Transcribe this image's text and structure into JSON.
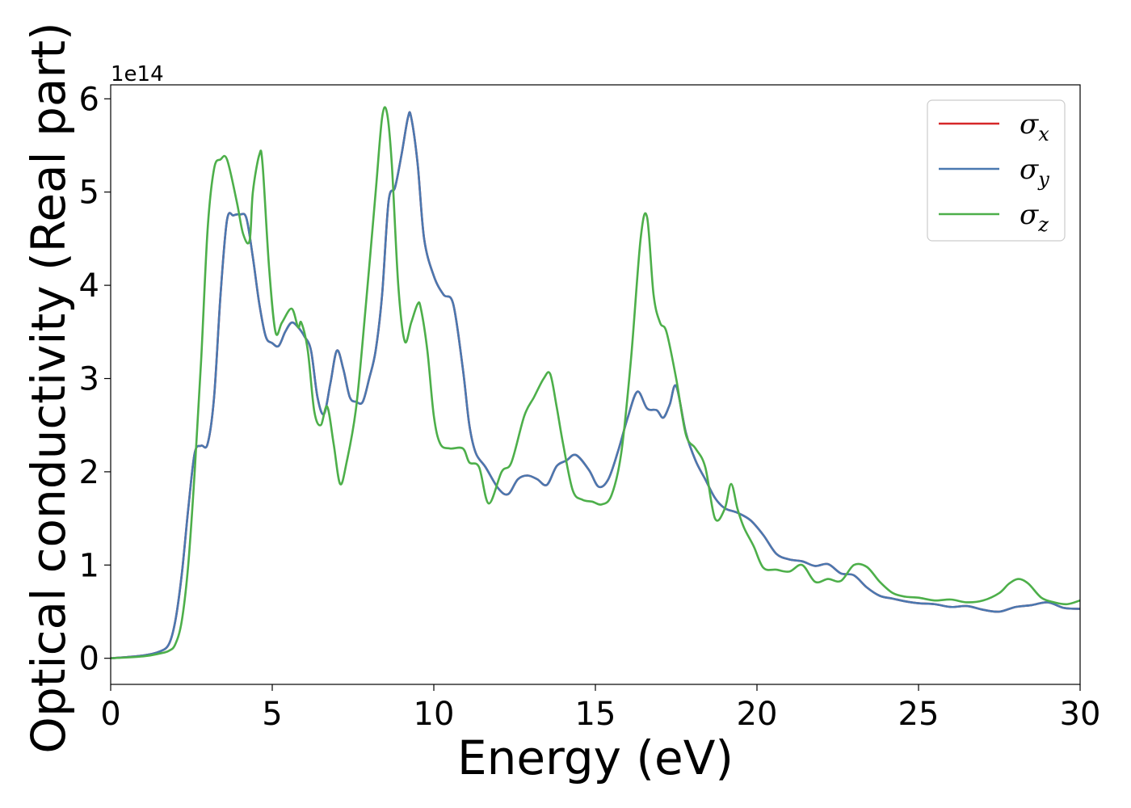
{
  "chart_data": {
    "type": "line",
    "title": "",
    "xlabel": "Energy (eV)",
    "ylabel": "Optical conductivity (Real part)",
    "y_offset_text": "1e14",
    "xlim": [
      0,
      30
    ],
    "ylim": [
      -0.28,
      6.15
    ],
    "x_ticks": [
      0,
      5,
      10,
      15,
      20,
      25,
      30
    ],
    "y_ticks": [
      0,
      1,
      2,
      3,
      4,
      5,
      6
    ],
    "grid": false,
    "legend_position": "top-right",
    "series": [
      {
        "name": "σx",
        "legend_label": "σ",
        "legend_sub": "x",
        "color": "#d62728",
        "x": [
          0,
          1,
          1.5,
          1.8,
          2.0,
          2.2,
          2.4,
          2.6,
          2.8,
          3.0,
          3.2,
          3.4,
          3.6,
          3.8,
          4.0,
          4.2,
          4.4,
          4.6,
          4.8,
          5.0,
          5.2,
          5.4,
          5.6,
          5.8,
          6.0,
          6.2,
          6.4,
          6.6,
          6.8,
          7.0,
          7.2,
          7.4,
          7.6,
          7.8,
          8.0,
          8.2,
          8.4,
          8.6,
          8.8,
          9.0,
          9.2,
          9.3,
          9.5,
          9.7,
          10.0,
          10.3,
          10.6,
          10.9,
          11.1,
          11.3,
          11.6,
          12.0,
          12.3,
          12.6,
          12.9,
          13.2,
          13.5,
          13.8,
          14.1,
          14.4,
          14.8,
          15.1,
          15.4,
          15.7,
          16.0,
          16.3,
          16.6,
          16.9,
          17.1,
          17.3,
          17.5,
          17.8,
          18.1,
          18.4,
          18.7,
          19.0,
          19.4,
          19.8,
          20.2,
          20.6,
          21.0,
          21.4,
          21.8,
          22.2,
          22.6,
          23.0,
          23.4,
          23.8,
          24.2,
          24.6,
          25.0,
          25.5,
          26.0,
          26.5,
          27.0,
          27.5,
          28.0,
          28.5,
          29.0,
          29.5,
          30.0
        ],
        "y": [
          0,
          0.03,
          0.07,
          0.15,
          0.4,
          0.9,
          1.6,
          2.2,
          2.28,
          2.3,
          2.8,
          3.9,
          4.7,
          4.75,
          4.76,
          4.72,
          4.3,
          3.8,
          3.45,
          3.38,
          3.35,
          3.5,
          3.6,
          3.55,
          3.45,
          3.3,
          2.8,
          2.62,
          2.95,
          3.3,
          3.1,
          2.8,
          2.75,
          2.75,
          3.0,
          3.3,
          3.9,
          4.9,
          5.05,
          5.4,
          5.8,
          5.8,
          5.3,
          4.5,
          4.1,
          3.9,
          3.8,
          3.1,
          2.5,
          2.2,
          2.05,
          1.82,
          1.76,
          1.92,
          1.96,
          1.92,
          1.86,
          2.06,
          2.12,
          2.18,
          2.02,
          1.84,
          1.92,
          2.22,
          2.58,
          2.86,
          2.68,
          2.66,
          2.58,
          2.72,
          2.92,
          2.42,
          2.12,
          1.92,
          1.72,
          1.61,
          1.56,
          1.48,
          1.32,
          1.12,
          1.06,
          1.04,
          0.99,
          1.01,
          0.91,
          0.89,
          0.76,
          0.67,
          0.64,
          0.61,
          0.59,
          0.58,
          0.55,
          0.56,
          0.52,
          0.5,
          0.55,
          0.57,
          0.6,
          0.54,
          0.53
        ]
      },
      {
        "name": "σy",
        "legend_label": "σ",
        "legend_sub": "y",
        "color": "#4a78b0",
        "x": [
          0,
          1,
          1.5,
          1.8,
          2.0,
          2.2,
          2.4,
          2.6,
          2.8,
          3.0,
          3.2,
          3.4,
          3.6,
          3.8,
          4.0,
          4.2,
          4.4,
          4.6,
          4.8,
          5.0,
          5.2,
          5.4,
          5.6,
          5.8,
          6.0,
          6.2,
          6.4,
          6.6,
          6.8,
          7.0,
          7.2,
          7.4,
          7.6,
          7.8,
          8.0,
          8.2,
          8.4,
          8.6,
          8.8,
          9.0,
          9.2,
          9.3,
          9.5,
          9.7,
          10.0,
          10.3,
          10.6,
          10.9,
          11.1,
          11.3,
          11.6,
          12.0,
          12.3,
          12.6,
          12.9,
          13.2,
          13.5,
          13.8,
          14.1,
          14.4,
          14.8,
          15.1,
          15.4,
          15.7,
          16.0,
          16.3,
          16.6,
          16.9,
          17.1,
          17.3,
          17.5,
          17.8,
          18.1,
          18.4,
          18.7,
          19.0,
          19.4,
          19.8,
          20.2,
          20.6,
          21.0,
          21.4,
          21.8,
          22.2,
          22.6,
          23.0,
          23.4,
          23.8,
          24.2,
          24.6,
          25.0,
          25.5,
          26.0,
          26.5,
          27.0,
          27.5,
          28.0,
          28.5,
          29.0,
          29.5,
          30.0
        ],
        "y": [
          0,
          0.03,
          0.07,
          0.15,
          0.4,
          0.9,
          1.6,
          2.2,
          2.28,
          2.3,
          2.8,
          3.9,
          4.7,
          4.75,
          4.76,
          4.72,
          4.3,
          3.8,
          3.45,
          3.38,
          3.35,
          3.5,
          3.6,
          3.55,
          3.45,
          3.3,
          2.8,
          2.62,
          2.95,
          3.3,
          3.1,
          2.8,
          2.75,
          2.75,
          3.0,
          3.3,
          3.9,
          4.9,
          5.05,
          5.4,
          5.8,
          5.8,
          5.3,
          4.5,
          4.1,
          3.9,
          3.8,
          3.1,
          2.5,
          2.2,
          2.05,
          1.82,
          1.76,
          1.92,
          1.96,
          1.92,
          1.86,
          2.06,
          2.12,
          2.18,
          2.02,
          1.84,
          1.92,
          2.22,
          2.58,
          2.86,
          2.68,
          2.66,
          2.58,
          2.72,
          2.92,
          2.42,
          2.12,
          1.92,
          1.72,
          1.61,
          1.56,
          1.48,
          1.32,
          1.12,
          1.06,
          1.04,
          0.99,
          1.01,
          0.91,
          0.89,
          0.76,
          0.67,
          0.64,
          0.61,
          0.59,
          0.58,
          0.55,
          0.56,
          0.52,
          0.5,
          0.55,
          0.57,
          0.6,
          0.54,
          0.53
        ]
      },
      {
        "name": "σz",
        "legend_label": "σ",
        "legend_sub": "z",
        "color": "#4daf4a",
        "x": [
          0,
          1,
          1.5,
          1.8,
          2.0,
          2.2,
          2.4,
          2.6,
          2.8,
          3.0,
          3.2,
          3.4,
          3.6,
          3.9,
          4.1,
          4.3,
          4.4,
          4.6,
          4.7,
          4.9,
          5.1,
          5.3,
          5.6,
          5.8,
          5.9,
          6.1,
          6.3,
          6.5,
          6.7,
          6.9,
          7.1,
          7.3,
          7.6,
          7.9,
          8.2,
          8.4,
          8.55,
          8.7,
          8.9,
          9.1,
          9.3,
          9.5,
          9.6,
          9.8,
          10.0,
          10.2,
          10.5,
          10.9,
          11.1,
          11.4,
          11.7,
          12.1,
          12.4,
          12.8,
          13.1,
          13.4,
          13.6,
          13.8,
          14.0,
          14.3,
          14.6,
          14.9,
          15.2,
          15.5,
          15.8,
          16.1,
          16.4,
          16.6,
          16.8,
          17.0,
          17.2,
          17.5,
          17.8,
          18.1,
          18.4,
          18.7,
          19.0,
          19.2,
          19.4,
          19.6,
          19.9,
          20.2,
          20.6,
          21.0,
          21.4,
          21.8,
          22.2,
          22.6,
          23.0,
          23.4,
          23.8,
          24.2,
          24.6,
          25.0,
          25.5,
          26.0,
          26.5,
          27.0,
          27.5,
          27.8,
          28.1,
          28.4,
          28.8,
          29.2,
          29.6,
          30.0
        ],
        "y": [
          0,
          0.02,
          0.05,
          0.08,
          0.15,
          0.4,
          1.0,
          2.0,
          3.2,
          4.6,
          5.25,
          5.35,
          5.35,
          4.9,
          4.55,
          4.48,
          5.0,
          5.4,
          5.3,
          4.2,
          3.5,
          3.6,
          3.75,
          3.55,
          3.6,
          3.3,
          2.65,
          2.5,
          2.7,
          2.3,
          1.87,
          2.1,
          2.7,
          3.8,
          5.0,
          5.8,
          5.85,
          5.3,
          4.0,
          3.4,
          3.6,
          3.8,
          3.75,
          3.3,
          2.6,
          2.3,
          2.25,
          2.25,
          2.1,
          2.05,
          1.66,
          2.0,
          2.1,
          2.6,
          2.8,
          3.0,
          3.05,
          2.7,
          2.3,
          1.8,
          1.7,
          1.68,
          1.65,
          1.75,
          2.2,
          3.2,
          4.5,
          4.73,
          3.9,
          3.6,
          3.5,
          3.0,
          2.4,
          2.25,
          2.05,
          1.5,
          1.6,
          1.87,
          1.6,
          1.4,
          1.2,
          0.97,
          0.95,
          0.93,
          1.0,
          0.82,
          0.85,
          0.83,
          1.0,
          0.98,
          0.82,
          0.7,
          0.66,
          0.65,
          0.62,
          0.63,
          0.6,
          0.62,
          0.7,
          0.8,
          0.85,
          0.8,
          0.65,
          0.6,
          0.58,
          0.62
        ]
      }
    ]
  }
}
